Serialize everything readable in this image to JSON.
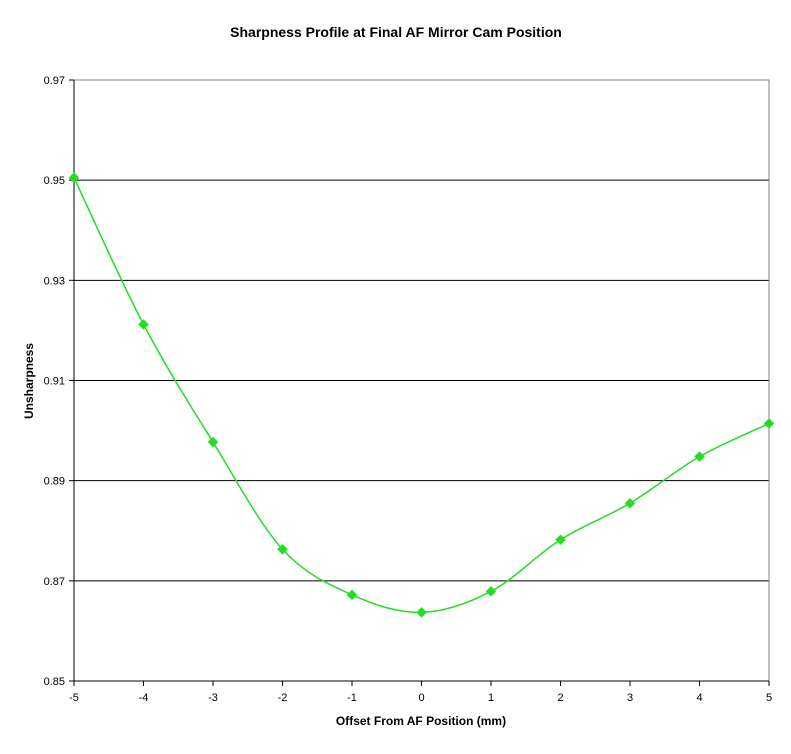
{
  "chart_data": {
    "type": "line",
    "title": "Sharpness Profile at Final AF Mirror Cam Position",
    "xlabel": "Offset From AF Position (mm)",
    "ylabel": "Unsharpness",
    "xlim": [
      -5,
      5
    ],
    "ylim": [
      0.85,
      0.97
    ],
    "x_ticks": [
      "-5",
      "-4",
      "-3",
      "-2",
      "-1",
      "0",
      "1",
      "2",
      "3",
      "4",
      "5"
    ],
    "y_ticks": [
      "0.85",
      "0.87",
      "0.89",
      "0.91",
      "0.93",
      "0.95",
      "0.97"
    ],
    "grid": "horizontal major gridlines",
    "legend": "none",
    "series": [
      {
        "color": "#22dd22",
        "marker": "diamond",
        "smoothed": true,
        "x": [
          -5,
          -4,
          -3,
          -2,
          -1,
          0,
          1,
          2,
          3,
          4,
          5
        ],
        "y": [
          0.9505,
          0.9212,
          0.8977,
          0.8763,
          0.8672,
          0.8637,
          0.8679,
          0.8782,
          0.8855,
          0.8948,
          0.9014
        ]
      }
    ]
  }
}
